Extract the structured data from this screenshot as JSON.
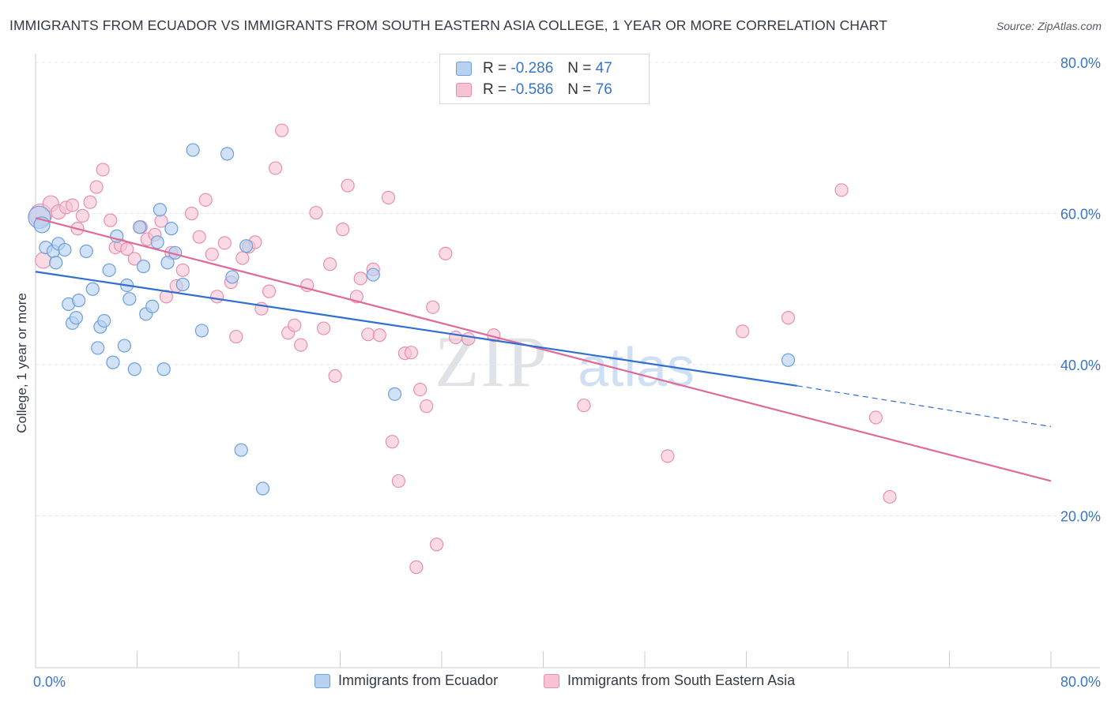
{
  "header": {
    "title": "IMMIGRANTS FROM ECUADOR VS IMMIGRANTS FROM SOUTH EASTERN ASIA COLLEGE, 1 YEAR OR MORE CORRELATION CHART",
    "source": "Source: ZipAtlas.com"
  },
  "watermark": {
    "zip": "ZIP",
    "atlas": "atlas"
  },
  "legend": {
    "r_label": "R =",
    "n_label": "N =",
    "series1": {
      "r": "-0.286",
      "n": "47"
    },
    "series2": {
      "r": "-0.586",
      "n": "76"
    }
  },
  "colors": {
    "series1_fill": "#b9d1f1",
    "series1_stroke": "#6d9fdc",
    "series1_line": "#2f6fd1",
    "series2_fill": "#f7c3d4",
    "series2_stroke": "#e98fae",
    "series2_line": "#e06a97",
    "tick_label": "#3a74c9",
    "grid": "#e3e6ea"
  },
  "chart_data": {
    "type": "scatter",
    "title": "IMMIGRANTS FROM ECUADOR VS IMMIGRANTS FROM SOUTH EASTERN ASIA COLLEGE, 1 YEAR OR MORE CORRELATION CHART",
    "xlabel": "",
    "ylabel": "College, 1 year or more",
    "xlim": [
      0,
      80
    ],
    "ylim": [
      0,
      85
    ],
    "x_tick_labels": [
      "0.0%",
      "80.0%"
    ],
    "y_ticks": [
      20,
      40,
      60,
      80
    ],
    "y_tick_labels": [
      "20.0%",
      "40.0%",
      "60.0%",
      "80.0%"
    ],
    "grid": true,
    "legend_position": "top-center",
    "series": [
      {
        "name": "Immigrants from Ecuador",
        "r": -0.286,
        "n": 47,
        "trend": {
          "x0": 0,
          "y0": 52.3,
          "x1": 60,
          "y1": 37.2,
          "dashed_to_x": 80,
          "dashed_to_y": 31.8
        },
        "points": [
          [
            0.3,
            59.5,
            14
          ],
          [
            0.5,
            58.5,
            10
          ],
          [
            0.8,
            55.5,
            8
          ],
          [
            1.4,
            55.0,
            8
          ],
          [
            1.6,
            53.5,
            8
          ],
          [
            1.8,
            56.0,
            8
          ],
          [
            2.3,
            55.2,
            8
          ],
          [
            2.6,
            48.0,
            8
          ],
          [
            3.4,
            48.5,
            8
          ],
          [
            2.9,
            45.5,
            8
          ],
          [
            3.2,
            46.2,
            8
          ],
          [
            4.0,
            55.0,
            8
          ],
          [
            4.5,
            50.0,
            8
          ],
          [
            5.1,
            45.0,
            8
          ],
          [
            5.4,
            45.8,
            8
          ],
          [
            4.9,
            42.2,
            8
          ],
          [
            5.8,
            52.5,
            8
          ],
          [
            6.4,
            57.0,
            8
          ],
          [
            7.0,
            42.5,
            8
          ],
          [
            7.2,
            50.5,
            8
          ],
          [
            7.4,
            48.7,
            8
          ],
          [
            6.1,
            40.3,
            8
          ],
          [
            7.8,
            39.4,
            8
          ],
          [
            8.2,
            58.2,
            8
          ],
          [
            8.5,
            53.0,
            8
          ],
          [
            8.7,
            46.7,
            8
          ],
          [
            9.2,
            47.7,
            8
          ],
          [
            9.6,
            56.2,
            8
          ],
          [
            9.8,
            60.5,
            8
          ],
          [
            10.1,
            39.4,
            8
          ],
          [
            10.4,
            53.5,
            8
          ],
          [
            10.7,
            58.0,
            8
          ],
          [
            11.0,
            54.8,
            8
          ],
          [
            11.6,
            50.6,
            8
          ],
          [
            12.4,
            68.4,
            8
          ],
          [
            13.1,
            44.5,
            8
          ],
          [
            15.1,
            67.9,
            8
          ],
          [
            15.5,
            51.6,
            8
          ],
          [
            16.2,
            28.7,
            8
          ],
          [
            16.6,
            55.7,
            8
          ],
          [
            17.9,
            23.6,
            8
          ],
          [
            26.6,
            51.9,
            8
          ],
          [
            28.3,
            36.1,
            8
          ],
          [
            59.3,
            40.6,
            8
          ]
        ]
      },
      {
        "name": "Immigrants from South Eastern Asia",
        "r": -0.586,
        "n": 76,
        "trend": {
          "x0": 0,
          "y0": 59.4,
          "x1": 80,
          "y1": 24.6
        },
        "points": [
          [
            0.4,
            59.8,
            14
          ],
          [
            0.6,
            53.8,
            10
          ],
          [
            1.2,
            61.3,
            10
          ],
          [
            1.8,
            60.2,
            9
          ],
          [
            2.4,
            60.8,
            8
          ],
          [
            2.9,
            61.1,
            8
          ],
          [
            3.3,
            58.0,
            8
          ],
          [
            3.7,
            59.7,
            8
          ],
          [
            4.3,
            61.5,
            8
          ],
          [
            4.8,
            63.5,
            8
          ],
          [
            5.3,
            65.8,
            8
          ],
          [
            5.9,
            59.1,
            8
          ],
          [
            6.3,
            55.5,
            8
          ],
          [
            6.7,
            55.8,
            8
          ],
          [
            7.2,
            55.3,
            8
          ],
          [
            7.8,
            54.0,
            8
          ],
          [
            8.3,
            58.2,
            8
          ],
          [
            8.8,
            56.6,
            8
          ],
          [
            9.4,
            57.2,
            8
          ],
          [
            9.9,
            59.0,
            8
          ],
          [
            10.3,
            49.0,
            8
          ],
          [
            10.7,
            54.8,
            8
          ],
          [
            11.1,
            50.4,
            8
          ],
          [
            11.6,
            52.5,
            8
          ],
          [
            12.3,
            60.0,
            8
          ],
          [
            12.9,
            56.9,
            8
          ],
          [
            13.4,
            61.8,
            8
          ],
          [
            13.9,
            54.6,
            8
          ],
          [
            14.3,
            49.0,
            8
          ],
          [
            14.9,
            56.1,
            8
          ],
          [
            15.4,
            50.9,
            8
          ],
          [
            15.8,
            43.7,
            8
          ],
          [
            16.3,
            54.1,
            8
          ],
          [
            16.8,
            55.6,
            8
          ],
          [
            17.3,
            56.2,
            8
          ],
          [
            17.8,
            47.4,
            8
          ],
          [
            18.4,
            49.7,
            8
          ],
          [
            18.9,
            66.0,
            8
          ],
          [
            19.4,
            71.0,
            8
          ],
          [
            19.9,
            44.2,
            8
          ],
          [
            20.4,
            45.2,
            8
          ],
          [
            20.9,
            42.6,
            8
          ],
          [
            21.4,
            50.5,
            8
          ],
          [
            22.1,
            60.1,
            8
          ],
          [
            22.7,
            44.8,
            8
          ],
          [
            23.2,
            53.3,
            8
          ],
          [
            23.6,
            38.5,
            8
          ],
          [
            24.2,
            57.9,
            8
          ],
          [
            24.6,
            63.7,
            8
          ],
          [
            25.3,
            49.0,
            8
          ],
          [
            25.6,
            51.4,
            8
          ],
          [
            26.2,
            44.0,
            8
          ],
          [
            26.6,
            52.6,
            8
          ],
          [
            27.1,
            43.9,
            8
          ],
          [
            27.8,
            62.1,
            8
          ],
          [
            28.1,
            29.8,
            8
          ],
          [
            28.6,
            24.6,
            8
          ],
          [
            29.1,
            41.5,
            8
          ],
          [
            29.6,
            41.6,
            8
          ],
          [
            30.3,
            36.7,
            8
          ],
          [
            30.8,
            34.5,
            8
          ],
          [
            31.3,
            47.6,
            8
          ],
          [
            31.6,
            16.2,
            8
          ],
          [
            30.0,
            13.2,
            8
          ],
          [
            32.3,
            54.7,
            8
          ],
          [
            33.1,
            43.6,
            8
          ],
          [
            34.1,
            43.4,
            8
          ],
          [
            36.1,
            43.9,
            8
          ],
          [
            43.2,
            34.6,
            8
          ],
          [
            49.8,
            27.9,
            8
          ],
          [
            55.7,
            44.4,
            8
          ],
          [
            59.3,
            46.2,
            8
          ],
          [
            63.5,
            63.1,
            8
          ],
          [
            66.2,
            33.0,
            8
          ],
          [
            67.3,
            22.5,
            8
          ]
        ]
      }
    ]
  },
  "bottom_legend": {
    "series1": "Immigrants from Ecuador",
    "series2": "Immigrants from South Eastern Asia"
  }
}
